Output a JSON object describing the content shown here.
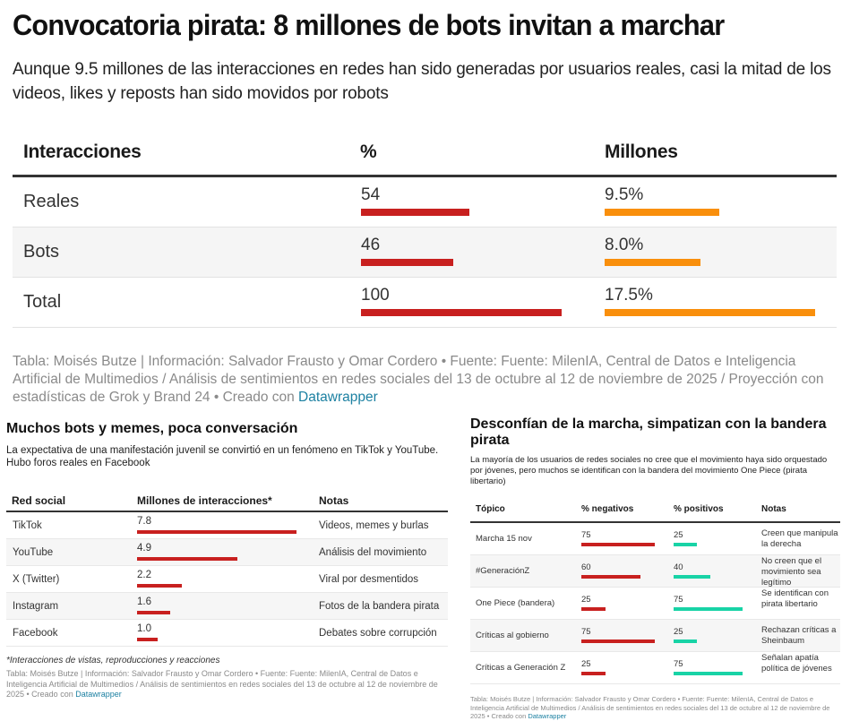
{
  "header": {
    "title": "Convocatoria pirata: 8 millones de bots invitan a marchar",
    "subtitle": "Aunque 9.5 millones de las interacciones en redes han sido generadas por usuarios reales, casi la mitad de los videos, likes y reposts han sido movidos por robots"
  },
  "colors": {
    "red": "#c8201f",
    "orange": "#f98f0c",
    "teal": "#18d3a6",
    "link": "#1d81a2"
  },
  "main_table": {
    "columns": [
      "Interacciones",
      "%",
      "Millones"
    ],
    "rows": [
      {
        "label": "Reales",
        "pct": 54,
        "pct_text": "54",
        "millones": 9.5,
        "millones_text": "9.5%"
      },
      {
        "label": "Bots",
        "pct": 46,
        "pct_text": "46",
        "millones": 8.0,
        "millones_text": "8.0%"
      },
      {
        "label": "Total",
        "pct": 100,
        "pct_text": "100",
        "millones": 17.5,
        "millones_text": "17.5%"
      }
    ],
    "footer_text": "Tabla: Moisés Butze | Información: Salvador Frausto y Omar Cordero • Fuente: Fuente: MilenIA, Central de Datos e Inteligencia Artificial de Multimedios / Análisis de sentimientos en redes sociales del 13 de octubre al 12 de noviembre de 2025 / Proyección con estadísticas de Grok y Brand 24 • Creado con ",
    "footer_link": "Datawrapper"
  },
  "social_table": {
    "title": "Muchos bots y memes, poca conversación",
    "description": "La expectativa de una manifestación juvenil se convirtió en un fenómeno en TikTok y YouTube. Hubo foros reales en Facebook",
    "columns": [
      "Red social",
      "Millones de interacciones*",
      "Notas"
    ],
    "rows": [
      {
        "red": "TikTok",
        "value": 7.8,
        "value_text": "7.8",
        "nota": "Videos, memes y burlas"
      },
      {
        "red": "YouTube",
        "value": 4.9,
        "value_text": "4.9",
        "nota": "Análisis del movimiento"
      },
      {
        "red": "X (Twitter)",
        "value": 2.2,
        "value_text": "2.2",
        "nota": "Viral por desmentidos"
      },
      {
        "red": "Instagram",
        "value": 1.6,
        "value_text": "1.6",
        "nota": "Fotos de la bandera pirata"
      },
      {
        "red": "Facebook",
        "value": 1.0,
        "value_text": "1.0",
        "nota": "Debates sobre corrupción"
      }
    ],
    "footnote": "*Interacciones de vistas, reproducciones y reacciones",
    "footer_text": "Tabla: Moisés Butze | Información: Salvador Frausto y Omar Cordero • Fuente: Fuente: MilenIA, Central de Datos e Inteligencia Artificial de Multimedios / Análisis de sentimientos en redes sociales del 13 de octubre al 12 de noviembre de 2025 • Creado con ",
    "footer_link": "Datawrapper"
  },
  "sentiment_table": {
    "title": "Desconfían de la marcha, simpatizan con la bandera pirata",
    "description": "La mayoría de los usuarios de redes sociales no cree que el movimiento haya sido orquestado por jóvenes, pero muchos se identifican con la bandera del movimiento One Piece (pirata libertario)",
    "columns": [
      "Tópico",
      "% negativos",
      "% positivos",
      "Notas"
    ],
    "rows": [
      {
        "topico": "Marcha 15 nov",
        "neg": 75,
        "neg_text": "75",
        "pos": 25,
        "pos_text": "25",
        "nota": "Creen que manipula la derecha"
      },
      {
        "topico": "#GeneraciónZ",
        "neg": 60,
        "neg_text": "60",
        "pos": 40,
        "pos_text": "40",
        "nota": "No creen que el movimiento sea legítimo"
      },
      {
        "topico": "One Piece (bandera)",
        "neg": 25,
        "neg_text": "25",
        "pos": 75,
        "pos_text": "75",
        "nota": "Se identifican con pirata libertario"
      },
      {
        "topico": "Críticas al gobierno",
        "neg": 75,
        "neg_text": "75",
        "pos": 25,
        "pos_text": "25",
        "nota": "Rechazan críticas a Sheinbaum"
      },
      {
        "topico": "Críticas a Generación Z",
        "neg": 25,
        "neg_text": "25",
        "pos": 75,
        "pos_text": "75",
        "nota": "Señalan apatía política de jóvenes"
      }
    ],
    "footer_text": "Tabla: Moisés Butze | Información: Salvador Frausto y Omar Cordero • Fuente: Fuente: MilenIA, Central de Datos e Inteligencia Artificial de Multimedios / Análisis de sentimientos en redes sociales del 13 de octubre al 12 de noviembre de 2025 • Creado con ",
    "footer_link": "Datawrapper"
  }
}
